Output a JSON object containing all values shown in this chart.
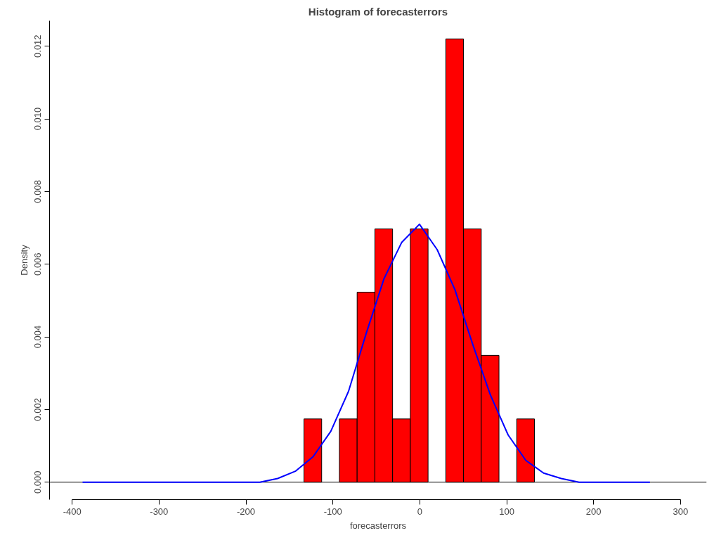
{
  "chart_data": {
    "type": "histogram",
    "title": "Histogram of forecasterrors",
    "xlabel": "forecasterrors",
    "ylabel": "Density",
    "bins": [
      -133.3,
      -112.9,
      -92.5,
      -72.1,
      -51.7,
      -31.3,
      -10.9,
      9.5,
      29.9,
      50.3,
      70.7,
      91.1,
      111.5,
      131.9
    ],
    "values": [
      0.00174,
      0,
      0.00174,
      0.00523,
      0.00697,
      0.00174,
      0.00697,
      0,
      0.0122,
      0.00697,
      0.00349,
      0,
      0.00174
    ],
    "color": "#ff0000",
    "series": [
      {
        "type": "line",
        "color": "#0000ff",
        "x": [
          -388,
          -367.6,
          -347.2,
          -326.8,
          -306.4,
          -286,
          -265.6,
          -245.2,
          -224.8,
          -204.4,
          -184,
          -163.6,
          -143.2,
          -122.8,
          -102.4,
          -82,
          -61.6,
          -41.2,
          -20.8,
          -0.4,
          20,
          40.4,
          60.8,
          81.2,
          101.6,
          122,
          142.4,
          162.8,
          183.2,
          203.6,
          224,
          244.4,
          264.8
        ],
        "values": [
          0,
          0,
          0,
          0,
          0,
          0,
          0,
          0,
          0,
          0,
          0,
          0.0001,
          0.0003,
          0.0007,
          0.0014,
          0.0025,
          0.0041,
          0.0056,
          0.0066,
          0.0071,
          0.0064,
          0.0053,
          0.0038,
          0.0024,
          0.0013,
          0.0006,
          0.00025,
          0.0001,
          0,
          0,
          0,
          0,
          0
        ]
      }
    ],
    "ref_lines": [
      {
        "axis": "y",
        "value": 0
      }
    ],
    "xlim": [
      -426,
      330
    ],
    "ylim": [
      -0.00048,
      0.0127
    ],
    "xticks": [
      -400,
      -300,
      -200,
      -100,
      0,
      100,
      200,
      300
    ],
    "yticks": [
      {
        "value": 0,
        "label": "0.000"
      },
      {
        "value": 0.002,
        "label": "0.002"
      },
      {
        "value": 0.004,
        "label": "0.004"
      },
      {
        "value": 0.006,
        "label": "0.006"
      },
      {
        "value": 0.008,
        "label": "0.008"
      },
      {
        "value": 0.01,
        "label": "0.010"
      },
      {
        "value": 0.012,
        "label": "0.012"
      }
    ],
    "grid": false
  }
}
